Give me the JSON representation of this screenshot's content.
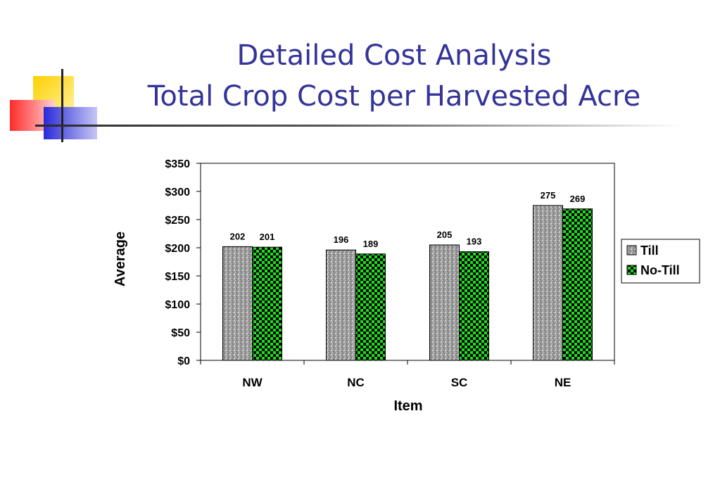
{
  "title": {
    "line1": "Detailed Cost Analysis",
    "line2": "Total Crop Cost per Harvested Acre"
  },
  "chart_data": {
    "type": "bar",
    "categories": [
      "NW",
      "NC",
      "SC",
      "NE"
    ],
    "series": [
      {
        "name": "Till",
        "values": [
          202,
          196,
          205,
          275
        ],
        "color": "#9a9a9a"
      },
      {
        "name": "No-Till",
        "values": [
          201,
          189,
          193,
          269
        ],
        "color": "#1fdc1f"
      }
    ],
    "xlabel": "Item",
    "ylabel": "Average",
    "ylim": [
      0,
      350
    ],
    "yticks": [
      0,
      50,
      100,
      150,
      200,
      250,
      300,
      350
    ],
    "ytick_labels": [
      "$0",
      "$50",
      "$100",
      "$150",
      "$200",
      "$250",
      "$300",
      "$350"
    ],
    "data_labels": true,
    "legend_position": "right",
    "grid": false
  }
}
